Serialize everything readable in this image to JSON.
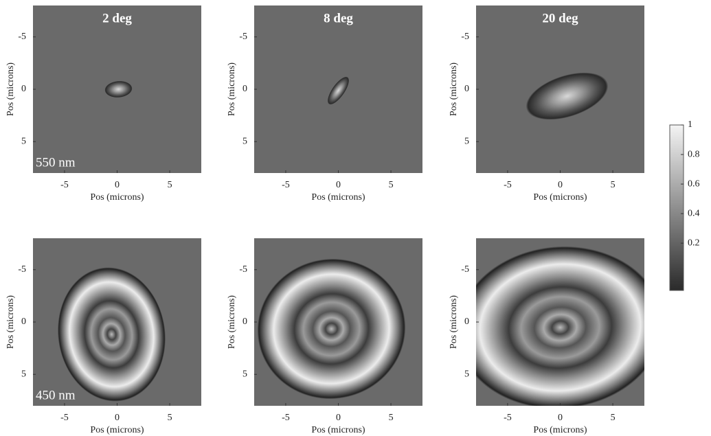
{
  "chart_data": [
    {
      "type": "image",
      "title": "2 deg",
      "annotation": "550 nm",
      "xlabel": "Pos (microns)",
      "ylabel": "Pos (microns)",
      "xlim": [
        -8,
        8
      ],
      "ylim": [
        8,
        -8
      ],
      "xticks": [
        -5,
        0,
        5
      ],
      "yticks": [
        -5,
        0,
        5
      ]
    },
    {
      "type": "image",
      "title": "8 deg",
      "xlabel": "Pos (microns)",
      "ylabel": "Pos (microns)",
      "xlim": [
        -8,
        8
      ],
      "ylim": [
        8,
        -8
      ],
      "xticks": [
        -5,
        0,
        5
      ],
      "yticks": [
        -5,
        0,
        5
      ]
    },
    {
      "type": "image",
      "title": "20 deg",
      "xlabel": "Pos (microns)",
      "ylabel": "Pos (microns)",
      "xlim": [
        -8,
        8
      ],
      "ylim": [
        8,
        -8
      ],
      "xticks": [
        -5,
        0,
        5
      ],
      "yticks": [
        -5,
        0,
        5
      ]
    },
    {
      "type": "image",
      "annotation": "450 nm",
      "xlabel": "Pos (microns)",
      "ylabel": "Pos (microns)",
      "xlim": [
        -8,
        8
      ],
      "ylim": [
        8,
        -8
      ],
      "xticks": [
        -5,
        0,
        5
      ],
      "yticks": [
        -5,
        0,
        5
      ]
    },
    {
      "type": "image",
      "xlabel": "Pos (microns)",
      "ylabel": "Pos (microns)",
      "xlim": [
        -8,
        8
      ],
      "ylim": [
        8,
        -8
      ],
      "xticks": [
        -5,
        0,
        5
      ],
      "yticks": [
        -5,
        0,
        5
      ]
    },
    {
      "type": "image",
      "xlabel": "Pos (microns)",
      "ylabel": "Pos (microns)",
      "xlim": [
        -8,
        8
      ],
      "ylim": [
        8,
        -8
      ],
      "xticks": [
        -5,
        0,
        5
      ],
      "yticks": [
        -5,
        0,
        5
      ]
    },
    {
      "type": "colorbar",
      "ylim": [
        -0.12,
        1
      ],
      "yticks": [
        0.2,
        0.4,
        0.6,
        0.8,
        1
      ]
    }
  ]
}
